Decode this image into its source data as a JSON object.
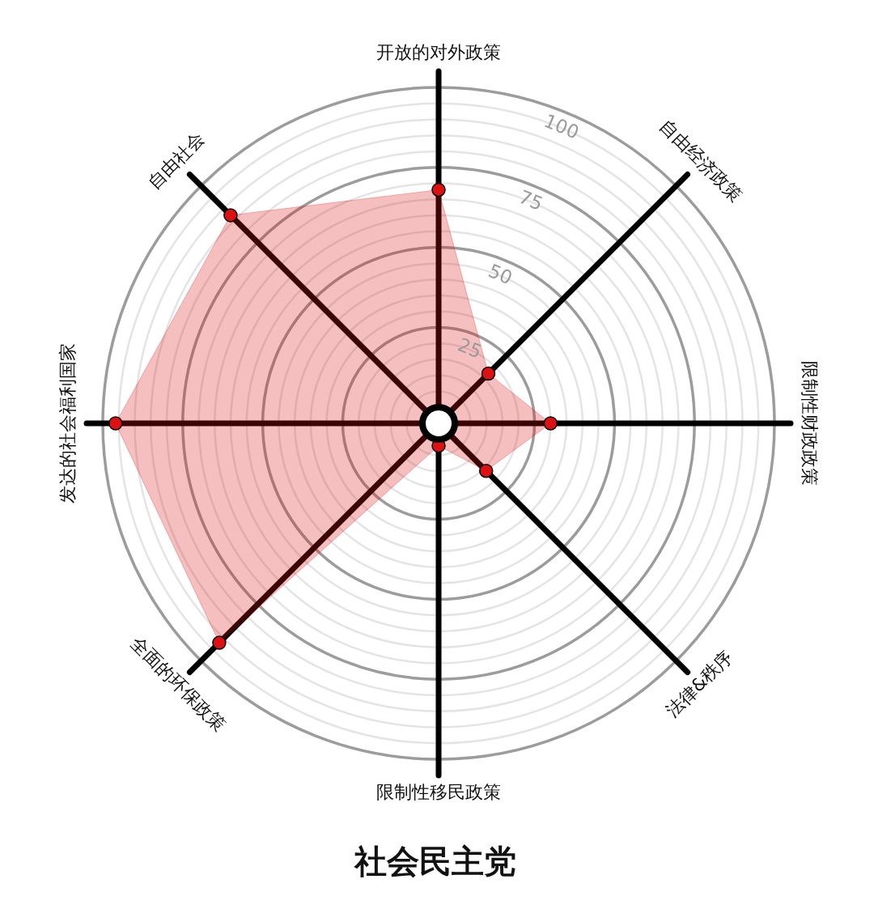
{
  "chart_data": {
    "type": "radar",
    "title": "社会民主党",
    "categories": [
      "开放的对外政策",
      "自由经济政策",
      "限制性财政政策",
      "法律&秩序",
      "限制性移民政策",
      "全面的环保政策",
      "发达的社会福利国家",
      "自由社会"
    ],
    "series": [
      {
        "color": "#dd1111",
        "values": [
          68,
          17,
          30,
          16,
          2,
          92,
          96,
          87
        ]
      }
    ],
    "ylim": [
      -5,
      100
    ],
    "yticks": [
      25,
      50,
      75,
      100
    ],
    "grid": true,
    "marker": "circle",
    "legend": false
  }
}
